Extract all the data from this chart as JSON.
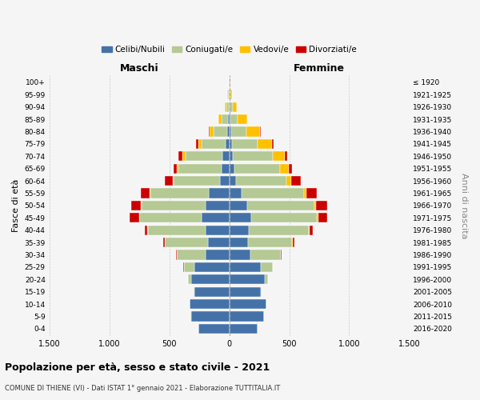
{
  "age_groups": [
    "0-4",
    "5-9",
    "10-14",
    "15-19",
    "20-24",
    "25-29",
    "30-34",
    "35-39",
    "40-44",
    "45-49",
    "50-54",
    "55-59",
    "60-64",
    "65-69",
    "70-74",
    "75-79",
    "80-84",
    "85-89",
    "90-94",
    "95-99",
    "100+"
  ],
  "birth_years": [
    "2016-2020",
    "2011-2015",
    "2006-2010",
    "2001-2005",
    "1996-2000",
    "1991-1995",
    "1986-1990",
    "1981-1985",
    "1976-1980",
    "1971-1975",
    "1966-1970",
    "1961-1965",
    "1956-1960",
    "1951-1955",
    "1946-1950",
    "1941-1945",
    "1936-1940",
    "1931-1935",
    "1926-1930",
    "1921-1925",
    "≤ 1920"
  ],
  "male": {
    "celibi": [
      260,
      320,
      330,
      290,
      320,
      290,
      200,
      175,
      200,
      230,
      200,
      170,
      75,
      65,
      55,
      30,
      20,
      10,
      5,
      3,
      2
    ],
    "coniugati": [
      0,
      1,
      2,
      5,
      25,
      90,
      240,
      360,
      480,
      520,
      530,
      490,
      390,
      360,
      310,
      200,
      110,
      55,
      20,
      8,
      2
    ],
    "vedovi": [
      0,
      0,
      0,
      0,
      0,
      0,
      0,
      1,
      2,
      3,
      5,
      5,
      5,
      10,
      25,
      30,
      35,
      25,
      10,
      3,
      1
    ],
    "divorziati": [
      0,
      0,
      0,
      0,
      1,
      3,
      5,
      15,
      20,
      75,
      80,
      75,
      70,
      30,
      35,
      20,
      5,
      2,
      1,
      0,
      0
    ]
  },
  "female": {
    "nubili": [
      235,
      290,
      310,
      265,
      295,
      265,
      175,
      155,
      165,
      185,
      150,
      100,
      55,
      45,
      30,
      20,
      15,
      10,
      5,
      3,
      2
    ],
    "coniugate": [
      0,
      1,
      2,
      5,
      30,
      95,
      255,
      370,
      500,
      545,
      560,
      520,
      420,
      380,
      330,
      215,
      130,
      60,
      25,
      8,
      3
    ],
    "vedove": [
      0,
      0,
      0,
      0,
      0,
      0,
      1,
      3,
      5,
      10,
      15,
      20,
      40,
      70,
      100,
      120,
      110,
      80,
      35,
      10,
      2
    ],
    "divorziate": [
      0,
      0,
      0,
      0,
      1,
      3,
      5,
      15,
      25,
      80,
      90,
      90,
      80,
      30,
      25,
      15,
      5,
      2,
      1,
      0,
      0
    ]
  },
  "colors": {
    "celibi": "#4472a8",
    "coniugati": "#b5c994",
    "vedovi": "#ffc000",
    "divorziati": "#cc0000"
  },
  "title": "Popolazione per età, sesso e stato civile - 2021",
  "subtitle": "COMUNE DI THIENE (VI) - Dati ISTAT 1° gennaio 2021 - Elaborazione TUTTITALIA.IT",
  "xlabel_left": "Maschi",
  "xlabel_right": "Femmine",
  "ylabel_left": "Fasce di età",
  "ylabel_right": "Anni di nascita",
  "xlim": 1500,
  "legend_labels": [
    "Celibi/Nubili",
    "Coniugati/e",
    "Vedovi/e",
    "Divorziati/e"
  ],
  "bg_color": "#f5f5f5"
}
